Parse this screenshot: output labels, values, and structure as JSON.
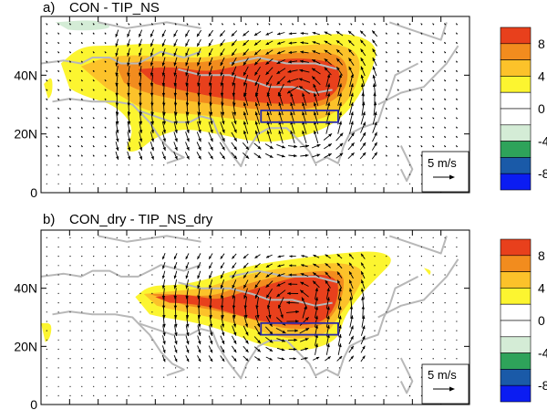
{
  "chart_data": [
    {
      "type": "heatmap",
      "panel_label": "a)",
      "title": "CON - TIP_NS",
      "x_range": [
        0,
        150
      ],
      "ylim": [
        0,
        60
      ],
      "ytick_labels": [
        "0",
        "20N",
        "40N"
      ],
      "yticks": [
        0,
        20,
        40
      ],
      "colorbar": {
        "levels": [
          "8",
          "4",
          "0",
          "-4",
          "-8"
        ],
        "colors": [
          "#e8401c",
          "#f28c1e",
          "#fcc22a",
          "#fcf530",
          "#ffffff",
          "#ffffff",
          "#d4ecd6",
          "#2ea35a",
          "#1a5aa8",
          "#0b1cf2"
        ]
      },
      "reference_vector": "5 m/s",
      "highlight_box": {
        "lon": [
          77,
          104
        ],
        "lat": [
          24,
          28
        ],
        "color": "#2a2aa8"
      }
    },
    {
      "type": "heatmap",
      "panel_label": "b)",
      "title": "CON_dry - TIP_NS_dry",
      "x_range": [
        0,
        150
      ],
      "ylim": [
        0,
        60
      ],
      "ytick_labels": [
        "0",
        "20N",
        "40N"
      ],
      "yticks": [
        0,
        20,
        40
      ],
      "colorbar": {
        "levels": [
          "8",
          "4",
          "0",
          "-4",
          "-8"
        ],
        "colors": [
          "#e8401c",
          "#f28c1e",
          "#fcc22a",
          "#fcf530",
          "#ffffff",
          "#ffffff",
          "#d4ecd6",
          "#2ea35a",
          "#1a5aa8",
          "#0b1cf2"
        ]
      },
      "reference_vector": "5 m/s",
      "highlight_box": {
        "lon": [
          77,
          104
        ],
        "lat": [
          24,
          28
        ],
        "color": "#2a2aa8"
      }
    }
  ]
}
